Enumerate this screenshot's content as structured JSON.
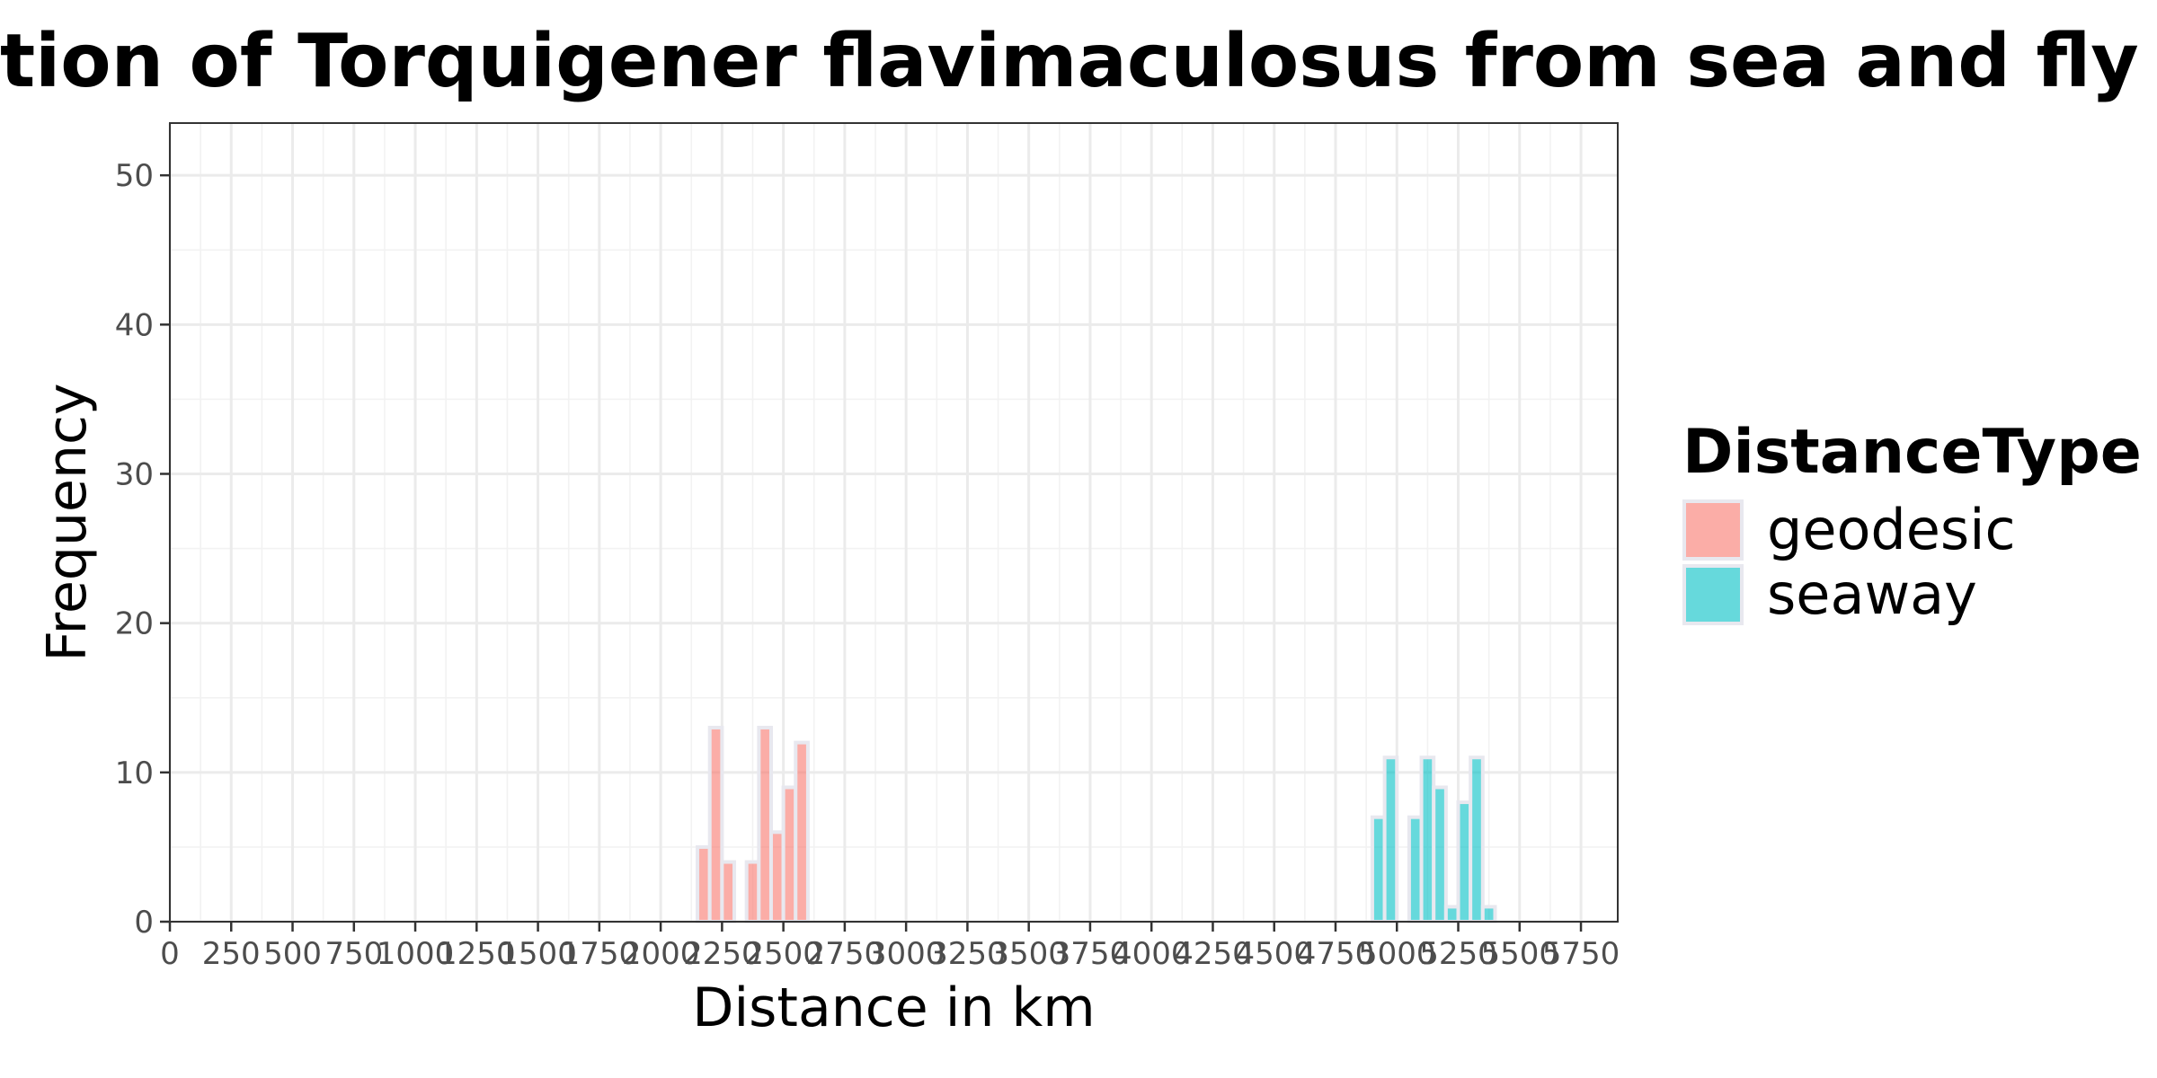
{
  "chart_data": {
    "type": "bar",
    "title": "Distribution of Torquigener flavimaculosus from sea and fly distances",
    "xlabel": "Distance in km",
    "ylabel": "Frequency",
    "xlim": [
      0,
      5900
    ],
    "ylim": [
      0,
      53.5
    ],
    "x_ticks": [
      0,
      250,
      500,
      750,
      1000,
      1250,
      1500,
      1750,
      2000,
      2250,
      2500,
      2750,
      3000,
      3250,
      3500,
      3750,
      4000,
      4250,
      4500,
      4750,
      5000,
      5250,
      5500,
      5750
    ],
    "x_tick_labels": [
      "0",
      "250",
      "500",
      "750",
      "1000",
      "1250",
      "1500",
      "1750",
      "2000",
      "2250",
      "2500",
      "2750",
      "3000",
      "3250",
      "3500",
      "3750",
      "4000",
      "4250",
      "4500",
      "4750",
      "5000",
      "5250",
      "5500",
      "5750"
    ],
    "y_ticks": [
      0,
      10,
      20,
      30,
      40,
      50
    ],
    "y_tick_labels": [
      "0",
      "10",
      "20",
      "30",
      "40",
      "50"
    ],
    "bin_width": 50,
    "grid": true,
    "legend": {
      "title": "DistanceType",
      "placement": "right"
    },
    "series": [
      {
        "name": "geodesic",
        "color": "#F8766D",
        "bins": [
          {
            "x0": 2150,
            "x1": 2200,
            "count": 5
          },
          {
            "x0": 2200,
            "x1": 2250,
            "count": 13
          },
          {
            "x0": 2250,
            "x1": 2300,
            "count": 4
          },
          {
            "x0": 2300,
            "x1": 2350,
            "count": 0
          },
          {
            "x0": 2350,
            "x1": 2400,
            "count": 4
          },
          {
            "x0": 2400,
            "x1": 2450,
            "count": 13
          },
          {
            "x0": 2450,
            "x1": 2500,
            "count": 6
          },
          {
            "x0": 2500,
            "x1": 2550,
            "count": 9
          },
          {
            "x0": 2550,
            "x1": 2600,
            "count": 12
          }
        ]
      },
      {
        "name": "seaway",
        "color": "#00BFC4",
        "bins": [
          {
            "x0": 4900,
            "x1": 4950,
            "count": 7
          },
          {
            "x0": 4950,
            "x1": 5000,
            "count": 11
          },
          {
            "x0": 5000,
            "x1": 5050,
            "count": 0
          },
          {
            "x0": 5050,
            "x1": 5100,
            "count": 7
          },
          {
            "x0": 5100,
            "x1": 5150,
            "count": 11
          },
          {
            "x0": 5150,
            "x1": 5200,
            "count": 9
          },
          {
            "x0": 5200,
            "x1": 5250,
            "count": 1
          },
          {
            "x0": 5250,
            "x1": 5300,
            "count": 8
          },
          {
            "x0": 5300,
            "x1": 5350,
            "count": 11
          },
          {
            "x0": 5350,
            "x1": 5400,
            "count": 1
          }
        ]
      }
    ]
  }
}
